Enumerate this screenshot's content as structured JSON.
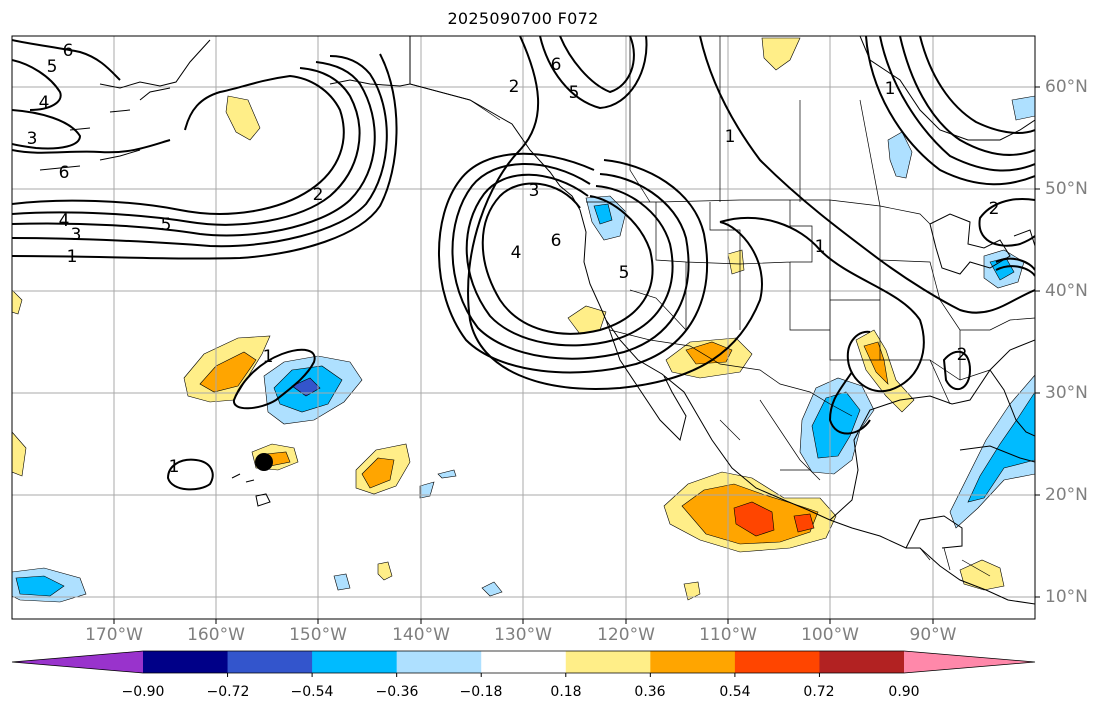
{
  "title": "2025090700 F072",
  "lon_labels": [
    "170°W",
    "160°W",
    "150°W",
    "140°W",
    "130°W",
    "120°W",
    "110°W",
    "100°W",
    "90°W"
  ],
  "lat_labels": [
    "60°N",
    "50°N",
    "40°N",
    "30°N",
    "20°N",
    "10°N"
  ],
  "colorbar": {
    "ticks": [
      "−0.90",
      "−0.72",
      "−0.54",
      "−0.36",
      "−0.18",
      "0.18",
      "0.36",
      "0.54",
      "0.72",
      "0.90"
    ],
    "colors": [
      "#9933cc",
      "#000088",
      "#3355cc",
      "#00bbff",
      "#aee0ff",
      "#ffffff",
      "#ffee88",
      "#ffa500",
      "#ff4500",
      "#b22222",
      "#ff88aa"
    ]
  },
  "contour_labels": [
    "6",
    "5",
    "4",
    "3",
    "6",
    "1",
    "4",
    "3",
    "5",
    "2",
    "6",
    "5",
    "2",
    "3",
    "4",
    "6",
    "5",
    "1",
    "1",
    "2",
    "1",
    "1",
    "2",
    "1"
  ],
  "marker": "storm-center"
}
